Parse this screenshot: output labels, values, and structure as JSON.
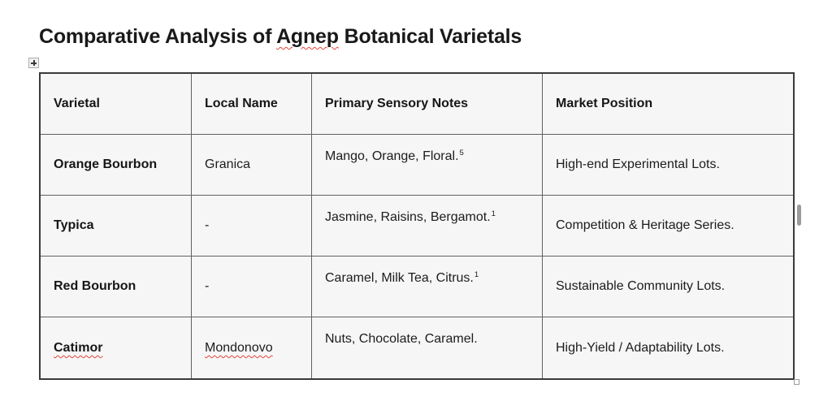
{
  "document": {
    "title": {
      "full": "Comparative Analysis of Agnep Botanical Varietals",
      "before": "Comparative Analysis of ",
      "misspelled_word": "Agnep",
      "after": " Botanical Varietals"
    }
  },
  "table": {
    "headers": {
      "varietal": "Varietal",
      "local_name": "Local Name",
      "notes": "Primary Sensory Notes",
      "market": "Market Position"
    },
    "rows": [
      {
        "varietal": "Orange Bourbon",
        "local_name": "Granica",
        "notes": "Mango, Orange, Floral.",
        "notes_footnote": "5",
        "market": "High-end Experimental Lots."
      },
      {
        "varietal": "Typica",
        "local_name": "-",
        "notes": "Jasmine, Raisins, Bergamot.",
        "notes_footnote": "1",
        "market": "Competition & Heritage Series."
      },
      {
        "varietal": "Red Bourbon",
        "local_name": "-",
        "notes": "Caramel, Milk Tea, Citrus.",
        "notes_footnote": "1",
        "market": "Sustainable Community Lots."
      },
      {
        "varietal": "Catimor",
        "local_name": "Mondonovo",
        "notes": "Nuts, Chocolate, Caramel.",
        "notes_footnote": "",
        "market": "High-Yield / Adaptability Lots."
      }
    ]
  },
  "icons": {
    "move_handle": "table-move-cross",
    "resize_handle": "table-resize-square",
    "scrollbar": "scrollbar-thumb"
  },
  "colors": {
    "page_bg": "#ffffff",
    "cell_bg": "#f6f6f7",
    "border_outer": "#3a3a3a",
    "border_inner": "#616161",
    "text": "#1c1c1c",
    "spellcheck_squiggle": "#e0463c",
    "scrollbar_thumb": "#9b9b9b"
  }
}
